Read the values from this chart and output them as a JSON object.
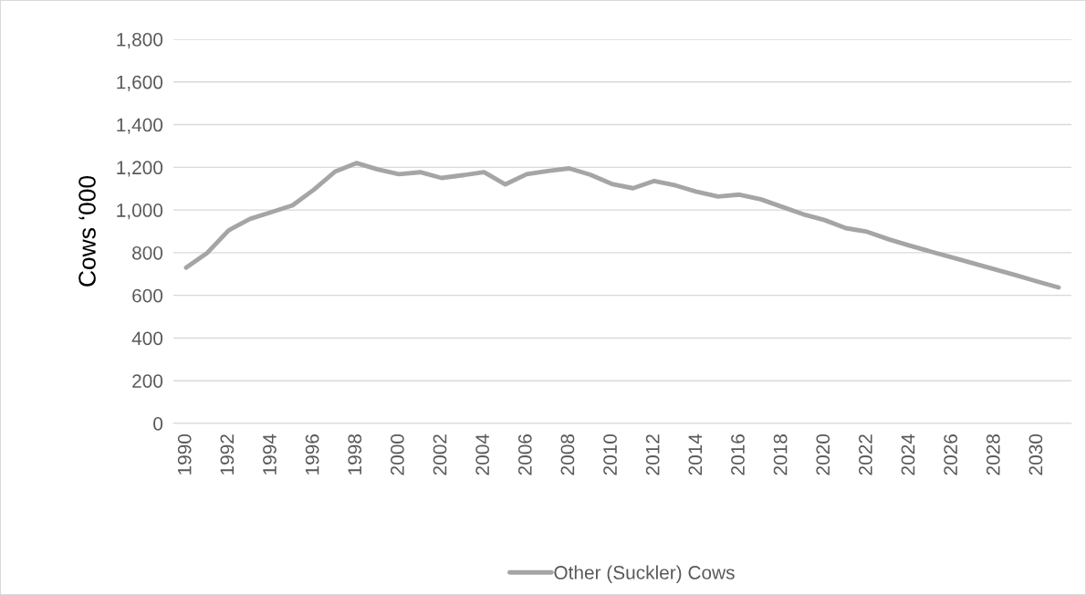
{
  "chart_data": {
    "type": "line",
    "ylabel": "Cows ‘000",
    "categories": [
      "1990",
      null,
      "1992",
      null,
      "1994",
      null,
      "1996",
      null,
      "1998",
      null,
      "2000",
      null,
      "2002",
      null,
      "2004",
      null,
      "2006",
      null,
      "2008",
      null,
      "2010",
      null,
      "2012",
      null,
      "2014",
      null,
      "2016",
      null,
      "2018",
      null,
      "2020",
      null,
      "2022",
      null,
      "2024",
      null,
      "2026",
      null,
      "2028",
      null,
      "2030",
      null
    ],
    "series": [
      {
        "name": "Other (Suckler) Cows",
        "color": "#a5a5a5",
        "values": [
          730,
          800,
          905,
          958,
          990,
          1022,
          1095,
          1180,
          1220,
          1190,
          1168,
          1177,
          1150,
          1163,
          1177,
          1120,
          1168,
          1183,
          1195,
          1165,
          1122,
          1102,
          1136,
          1115,
          1085,
          1063,
          1072,
          1050,
          1015,
          980,
          953,
          915,
          898,
          863,
          833,
          805,
          778,
          750,
          722,
          694,
          665,
          637
        ]
      }
    ],
    "ylim": [
      0,
      1800
    ],
    "yticks": [
      {
        "value": 0,
        "label": "0"
      },
      {
        "value": 200,
        "label": "200"
      },
      {
        "value": 400,
        "label": "400"
      },
      {
        "value": 600,
        "label": "600"
      },
      {
        "value": 800,
        "label": "800"
      },
      {
        "value": 1000,
        "label": "1,000"
      },
      {
        "value": 1200,
        "label": "1,200"
      },
      {
        "value": 1400,
        "label": "1,400"
      },
      {
        "value": 1600,
        "label": "1,600"
      },
      {
        "value": 1800,
        "label": "1,800"
      }
    ],
    "grid": "y",
    "legend": "bottom",
    "marker": "none",
    "line_style": "solid"
  }
}
